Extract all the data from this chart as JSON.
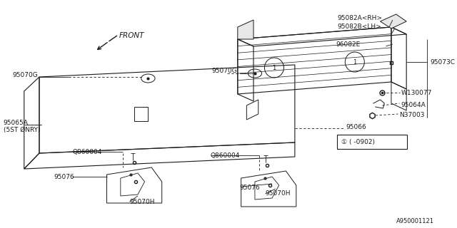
{
  "bg_color": "#ffffff",
  "line_color": "#1a1a1a",
  "watermark": "A950001121",
  "font_size": 6.5,
  "labels": {
    "95082A": "95082A<RH>",
    "95082B": "95082B<LH>",
    "96082E": "96082E",
    "95073C": "95073C",
    "95070G_L": "95070G",
    "95070G_R": "95070G",
    "W130077": "W130077",
    "95064A": "95064A",
    "N37003": "N37003",
    "95065A": "95065A",
    "5ST": "(5ST ØNRY)",
    "95066": "95066",
    "callout": "① ( -0902)",
    "Q860004_L": "Q860004",
    "Q860004_R": "Q860004",
    "95076_L": "95076",
    "95076_R": "95076",
    "95070H_L": "95070H",
    "95070H_R": "95070H",
    "FRONT": "FRONT"
  }
}
